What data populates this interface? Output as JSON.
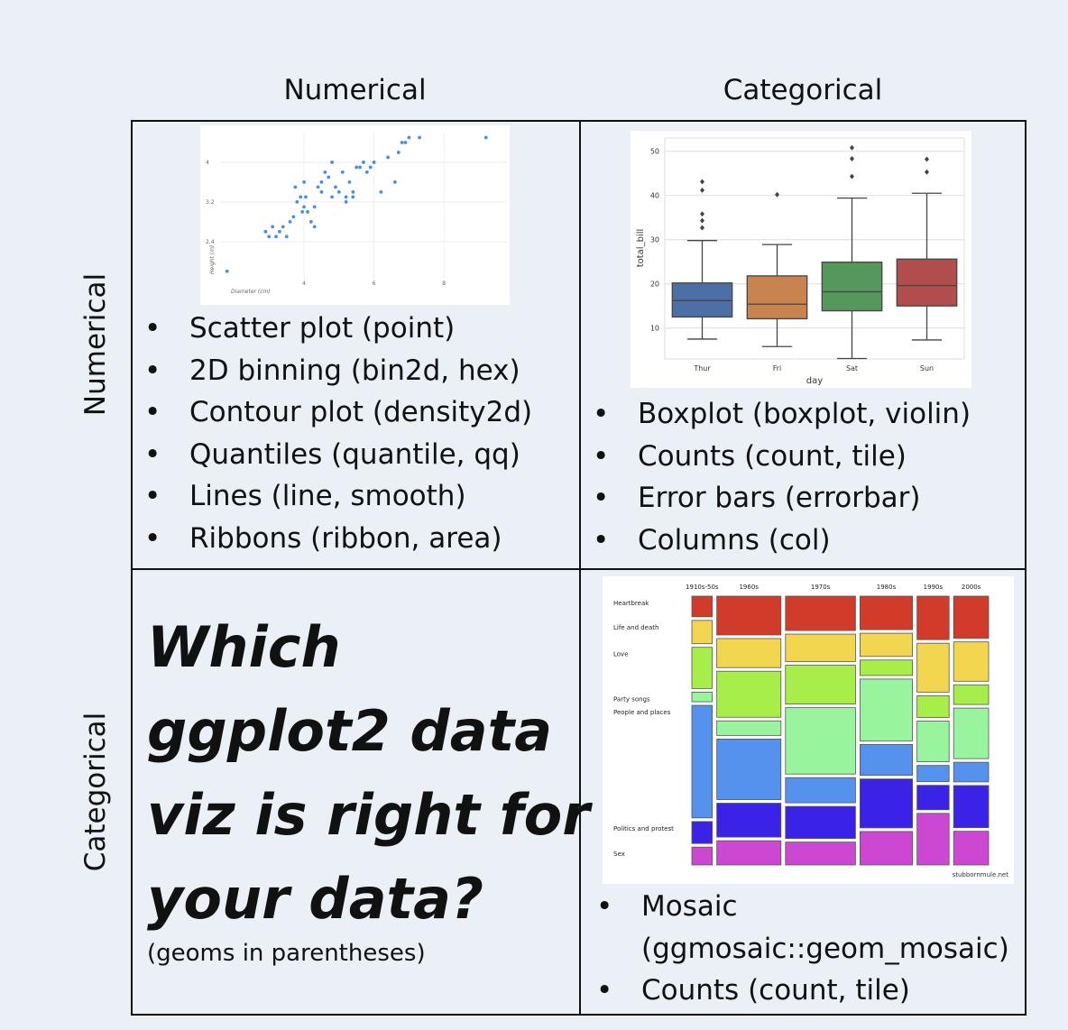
{
  "col_headers": [
    "Numerical",
    "Categorical"
  ],
  "row_headers": [
    "Numerical",
    "Categorical"
  ],
  "quadrants": {
    "num_num": {
      "bullets": [
        "Scatter plot (point)",
        "2D binning (bin2d, hex)",
        "Contour plot (density2d)",
        "Quantiles (quantile, qq)",
        "Lines (line, smooth)",
        "Ribbons (ribbon, area)"
      ]
    },
    "num_cat": {
      "bullets": [
        "Boxplot (boxplot, violin)",
        "Counts (count, tile)",
        "Error bars (errorbar)",
        "Columns (col)"
      ]
    },
    "cat_num": {
      "title_lines": [
        "Which",
        "ggplot2 data",
        "viz is right for",
        "your data?"
      ],
      "subtitle": "(geoms in parentheses)"
    },
    "cat_cat": {
      "bullets": [
        {
          "line1": "Mosaic",
          "line2": "(ggmosaic::geom_mosaic)"
        },
        "Counts (count, tile)"
      ]
    }
  },
  "chart_data": [
    {
      "type": "scatter",
      "xlabel": "Diameter (cm)",
      "ylabel": "Height (m)",
      "xticks": [
        4,
        6,
        8
      ],
      "yticks": [
        2.4,
        3.2,
        4
      ],
      "xlim": [
        1.6,
        9.8
      ],
      "ylim": [
        1.65,
        4.6
      ],
      "color": "#4a90d9",
      "x": [
        1.8,
        2.9,
        3.1,
        3.2,
        3.3,
        3.4,
        3.5,
        3.6,
        3.7,
        3.8,
        3.9,
        3.95,
        4.0,
        4.05,
        4.1,
        4.2,
        4.3,
        4.4,
        4.5,
        4.6,
        4.7,
        4.8,
        4.9,
        5.0,
        5.1,
        5.2,
        5.3,
        5.4,
        5.5,
        5.6,
        5.7,
        5.8,
        5.9,
        6.0,
        6.2,
        6.4,
        6.6,
        6.7,
        6.8,
        6.9,
        7.0,
        7.3,
        9.2,
        3.0,
        3.75,
        4.5,
        5.2,
        4.0,
        4.3,
        4.8,
        5.4
      ],
      "y": [
        1.8,
        2.6,
        2.7,
        2.5,
        2.6,
        2.7,
        2.5,
        2.8,
        2.9,
        3.2,
        3.3,
        3.0,
        3.1,
        3.3,
        3.0,
        2.8,
        2.7,
        3.5,
        3.6,
        3.8,
        3.7,
        3.3,
        3.5,
        3.4,
        3.8,
        3.2,
        3.6,
        3.3,
        3.9,
        3.9,
        4.0,
        3.8,
        3.9,
        4.0,
        3.4,
        4.1,
        3.6,
        4.2,
        4.4,
        4.4,
        4.5,
        4.5,
        4.5,
        2.5,
        3.5,
        3.4,
        3.3,
        3.6,
        3.1,
        4.0,
        3.4
      ]
    },
    {
      "type": "boxplot",
      "xlabel": "day",
      "ylabel": "total_bill",
      "categories": [
        "Thur",
        "Fri",
        "Sat",
        "Sun"
      ],
      "yticks": [
        10,
        20,
        30,
        40,
        50
      ],
      "ylim": [
        3,
        53
      ],
      "series": [
        {
          "name": "Thur",
          "color": "#4c6fa5",
          "min": 7.5,
          "q1": 12.5,
          "median": 16.2,
          "q3": 20.2,
          "max": 29.8,
          "outliers": [
            32.7,
            34.3,
            35.8,
            41.2,
            43.1
          ]
        },
        {
          "name": "Fri",
          "color": "#c9834e",
          "min": 5.8,
          "q1": 12.1,
          "median": 15.4,
          "q3": 21.8,
          "max": 28.9,
          "outliers": [
            40.2
          ]
        },
        {
          "name": "Sat",
          "color": "#55975d",
          "min": 3.1,
          "q1": 13.9,
          "median": 18.2,
          "q3": 24.9,
          "max": 39.4,
          "outliers": [
            44.3,
            48.3,
            50.8
          ]
        },
        {
          "name": "Sun",
          "color": "#b04e4e",
          "min": 7.3,
          "q1": 15.0,
          "median": 19.6,
          "q3": 25.6,
          "max": 40.5,
          "outliers": [
            45.3,
            48.2
          ]
        }
      ]
    },
    {
      "type": "mosaic",
      "columns": [
        "1910s-50s",
        "1960s",
        "1970s",
        "1980s",
        "1990s",
        "2000s"
      ],
      "rows": [
        "Heartbreak",
        "Life and death",
        "Love",
        "Party songs",
        "People and places",
        "Politics and protest",
        "Sex"
      ],
      "row_colors": [
        "#d13c2a",
        "#f2d64f",
        "#a8ee4a",
        "#98f59e",
        "#5592ee",
        "#3a22e6",
        "#cc48d2"
      ],
      "column_widths": [
        0.07,
        0.22,
        0.24,
        0.18,
        0.11,
        0.12
      ],
      "proportions": [
        [
          0.075,
          0.085,
          0.15,
          0.035,
          0.41,
          0.08,
          0.065
        ],
        [
          0.16,
          0.12,
          0.19,
          0.06,
          0.25,
          0.14,
          0.1
        ],
        [
          0.15,
          0.12,
          0.17,
          0.29,
          0.11,
          0.14,
          0.1
        ],
        [
          0.13,
          0.09,
          0.06,
          0.24,
          0.12,
          0.19,
          0.13
        ],
        [
          0.16,
          0.18,
          0.08,
          0.15,
          0.06,
          0.09,
          0.19
        ],
        [
          0.15,
          0.14,
          0.07,
          0.18,
          0.07,
          0.15,
          0.12
        ]
      ],
      "credit": "stubbornmule.net"
    }
  ]
}
